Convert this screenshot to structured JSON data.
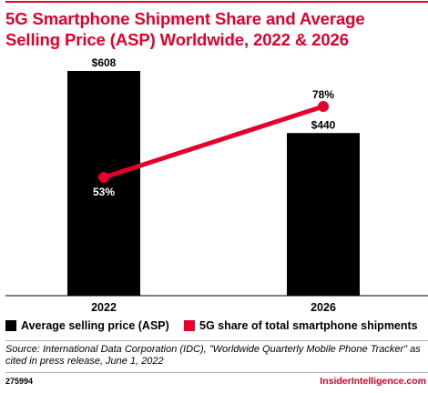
{
  "chart_data": {
    "type": "bar+line",
    "title": "5G Smartphone Shipment Share and Average Selling Price (ASP) Worldwide, 2022 & 2026",
    "categories": [
      "2022",
      "2026"
    ],
    "series": [
      {
        "name": "Average selling price (ASP)",
        "type": "bar",
        "color": "#000000",
        "values": [
          608,
          440
        ],
        "labels": [
          "$608",
          "$440"
        ]
      },
      {
        "name": "5G share of total smartphone shipments",
        "type": "line",
        "color": "#e4002b",
        "values": [
          53,
          78
        ],
        "labels": [
          "53%",
          "78%"
        ]
      }
    ],
    "legend_position": "bottom",
    "grid": false,
    "source": "Source: International Data Corporation (IDC), \"Worldwide Quarterly Mobile Phone Tracker\" as cited in press release, June 1, 2022",
    "chart_id": "275994",
    "brand": "InsiderIntelligence.com"
  }
}
